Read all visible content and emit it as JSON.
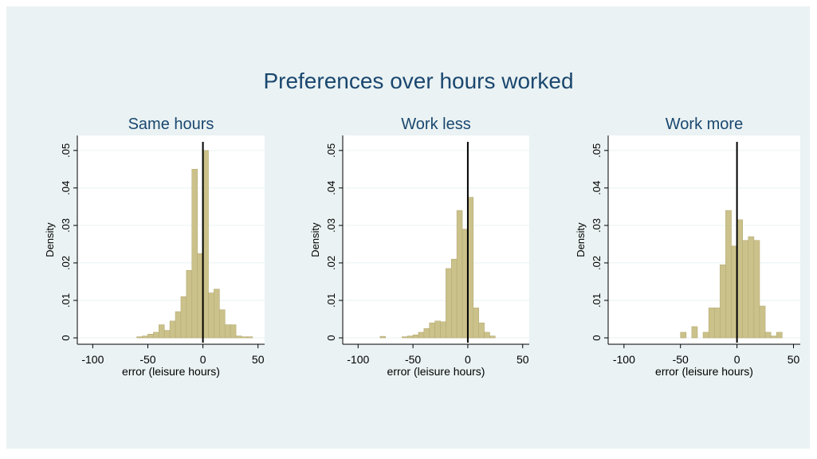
{
  "title": "Preferences over hours worked",
  "chart_data": [
    {
      "type": "histogram",
      "title": "Same hours",
      "xlabel": "error (leisure hours)",
      "ylabel": "Density",
      "bins": [
        -60,
        -55,
        -50,
        -45,
        -40,
        -35,
        -30,
        -25,
        -20,
        -15,
        -10,
        -5,
        0,
        5,
        10,
        15,
        20,
        25,
        30,
        35,
        40,
        45
      ],
      "values": [
        0.0003,
        0.0005,
        0.001,
        0.0015,
        0.0035,
        0.002,
        0.0045,
        0.007,
        0.011,
        0.018,
        0.045,
        0.0225,
        0.05,
        0.012,
        0.013,
        0.0075,
        0.0035,
        0.0035,
        0.0005,
        0.0003,
        0.0003
      ],
      "color": "#cbc18a",
      "xline": 0,
      "xlim": [
        -114,
        56
      ],
      "ylim": [
        -0.0017,
        0.054
      ],
      "xticks": [
        -100,
        -50,
        0,
        50
      ],
      "yticks": [
        0,
        {
          "value": 0.01,
          "label": ".01"
        },
        {
          "value": 0.02,
          "label": ".02"
        },
        {
          "value": 0.03,
          "label": ".03"
        },
        {
          "value": 0.04,
          "label": ".04"
        },
        {
          "value": 0.05,
          "label": ".05"
        }
      ],
      "grid": true
    },
    {
      "type": "histogram",
      "title": "Work less",
      "xlabel": "error (leisure hours)",
      "ylabel": "Density",
      "bins": [
        -80,
        -75,
        -70,
        -65,
        -60,
        -55,
        -50,
        -45,
        -40,
        -35,
        -30,
        -25,
        -20,
        -15,
        -10,
        -5,
        0,
        5,
        10,
        15,
        20,
        25
      ],
      "values": [
        0.0004,
        0,
        0,
        0,
        0.0003,
        0.0005,
        0.0008,
        0.0015,
        0.0025,
        0.004,
        0.0045,
        0.0043,
        0.0185,
        0.021,
        0.034,
        0.029,
        0.0375,
        0.008,
        0.004,
        0.0015,
        0.0005
      ],
      "color": "#cbc18a",
      "xline": 0,
      "xlim": [
        -114,
        56
      ],
      "ylim": [
        -0.0017,
        0.054
      ],
      "xticks": [
        -100,
        -50,
        0,
        50
      ],
      "yticks": [
        0,
        {
          "value": 0.01,
          "label": ".01"
        },
        {
          "value": 0.02,
          "label": ".02"
        },
        {
          "value": 0.03,
          "label": ".03"
        },
        {
          "value": 0.04,
          "label": ".04"
        },
        {
          "value": 0.05,
          "label": ".05"
        }
      ],
      "grid": true
    },
    {
      "type": "histogram",
      "title": "Work more",
      "xlabel": "error (leisure hours)",
      "ylabel": "Density",
      "bins": [
        -50,
        -45,
        -40,
        -35,
        -30,
        -25,
        -20,
        -15,
        -10,
        -5,
        0,
        5,
        10,
        15,
        20,
        25,
        30,
        35,
        40
      ],
      "values": [
        0.0015,
        0,
        0.003,
        0,
        0.0015,
        0.008,
        0.008,
        0.0195,
        0.034,
        0.0245,
        0.0315,
        0.026,
        0.027,
        0.026,
        0.0085,
        0.0015,
        0.0005,
        0.0015
      ],
      "color": "#cbc18a",
      "xline": 0,
      "xlim": [
        -114,
        56
      ],
      "ylim": [
        -0.0017,
        0.054
      ],
      "xticks": [
        -100,
        -50,
        0,
        50
      ],
      "yticks": [
        0,
        {
          "value": 0.01,
          "label": ".01"
        },
        {
          "value": 0.02,
          "label": ".02"
        },
        {
          "value": 0.03,
          "label": ".03"
        },
        {
          "value": 0.04,
          "label": ".04"
        },
        {
          "value": 0.05,
          "label": ".05"
        }
      ],
      "grid": true
    }
  ]
}
